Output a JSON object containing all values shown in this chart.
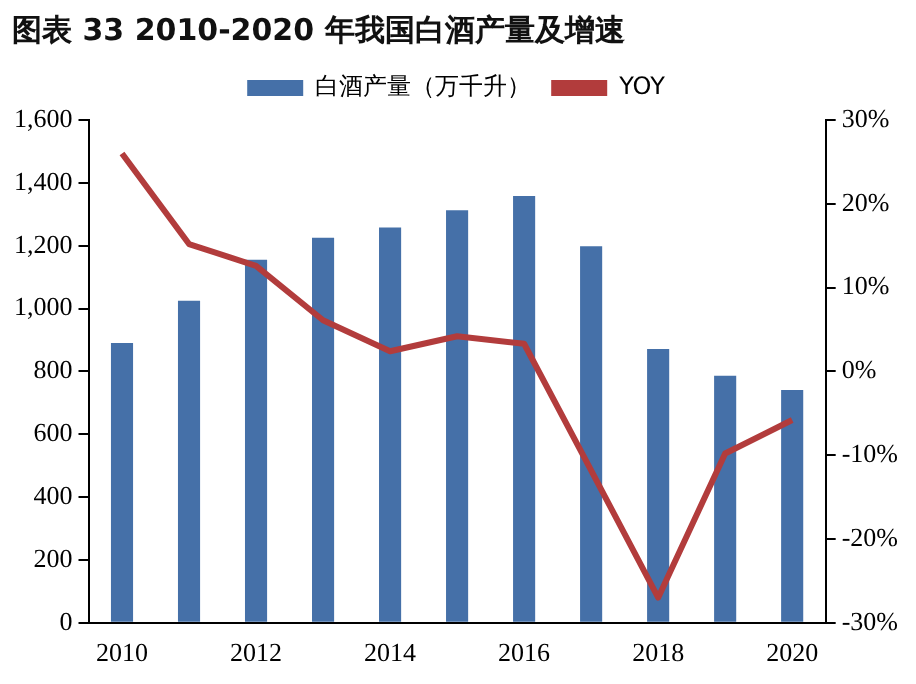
{
  "chart_data": {
    "type": "bar",
    "title": "图表 33 2010-2020 年我国白酒产量及增速",
    "categories": [
      "2010",
      null,
      "2012",
      null,
      "2014",
      null,
      "2016",
      null,
      "2018",
      null,
      "2020"
    ],
    "series": [
      {
        "name": "白酒产量（万千升）",
        "color": "#4570a8",
        "values": [
          890,
          1025,
          1155,
          1225,
          1258,
          1313,
          1358,
          1198,
          871,
          786,
          741
        ]
      },
      {
        "name": "YOY",
        "type": "line",
        "axis": "y2",
        "color": "#b23c3c",
        "values": [
          26,
          15.2,
          12.6,
          6.1,
          2.4,
          4.2,
          3.3,
          -11.8,
          -27,
          -9.8,
          -5.8
        ]
      }
    ],
    "ylim": [
      0,
      1600
    ],
    "yticks": [
      0,
      200,
      400,
      600,
      800,
      {
        "value": 1000,
        "label": "1,000"
      },
      {
        "value": 1200,
        "label": "1,200"
      },
      {
        "value": 1400,
        "label": "1,400"
      },
      {
        "value": 1600,
        "label": "1,600"
      }
    ],
    "y2lim": [
      -30,
      30
    ],
    "y2ticks": [
      {
        "value": -30,
        "label": "-30%"
      },
      {
        "value": -20,
        "label": "-20%"
      },
      {
        "value": -10,
        "label": "-10%"
      },
      {
        "value": 0,
        "label": "0%"
      },
      {
        "value": 10,
        "label": "10%"
      },
      {
        "value": 20,
        "label": "20%"
      },
      {
        "value": 30,
        "label": "30%"
      }
    ],
    "grid": false,
    "legend": "top",
    "marker": "none",
    "line_style": "solid"
  }
}
